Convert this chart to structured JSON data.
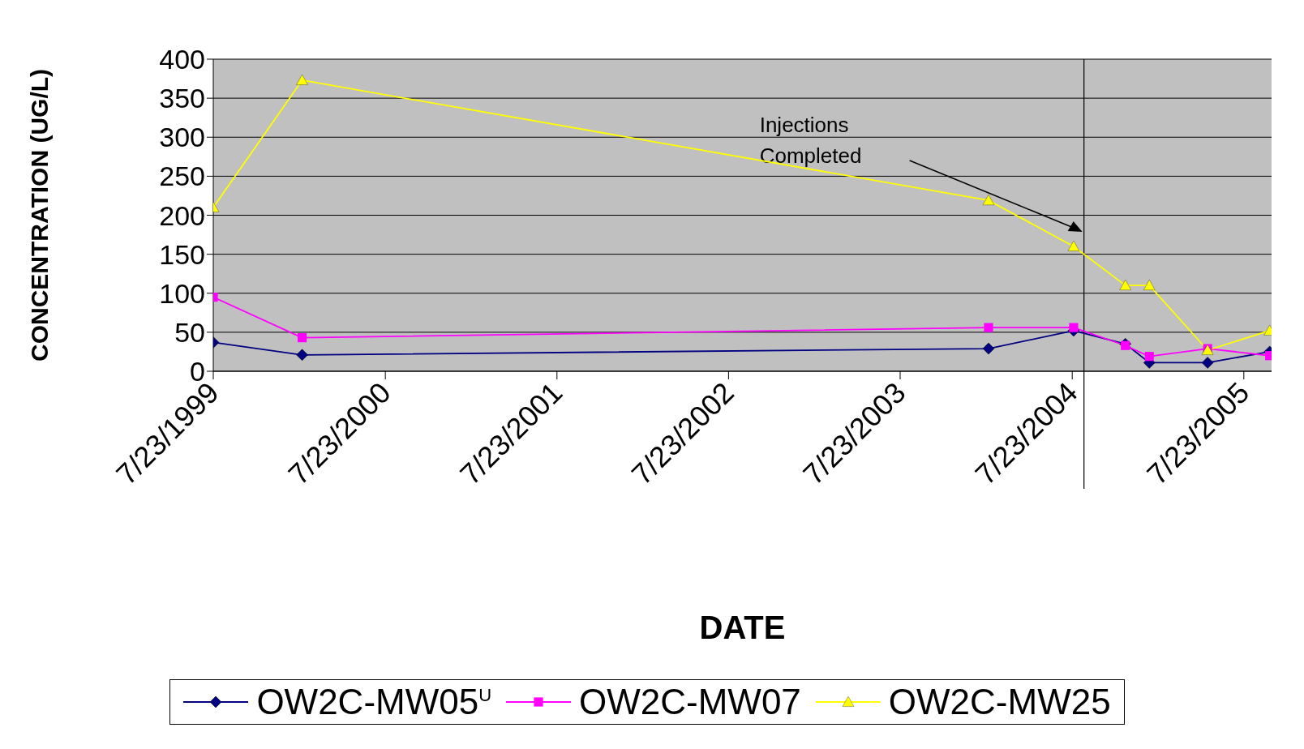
{
  "chart_data": {
    "type": "line",
    "xlabel": "DATE",
    "ylabel": "CONCENTRATION (UG/L)",
    "x": [
      "1999-07-23",
      "2000-01-28",
      "2004-01-27",
      "2004-07-26",
      "2004-11-13",
      "2005-01-03",
      "2005-05-07",
      "2005-09-16"
    ],
    "series": [
      {
        "name": "OW2C-MW05$^{U}$",
        "color": "#000080",
        "marker": "diamond",
        "values": [
          37,
          21,
          29,
          52,
          35,
          11,
          11,
          25
        ]
      },
      {
        "name": "OW2C-MW07",
        "color": "#ff00ff",
        "marker": "square",
        "values": [
          95,
          43,
          56,
          56,
          33,
          19,
          29,
          20
        ]
      },
      {
        "name": "OW2C-MW25",
        "color": "#ffff00",
        "marker": "triangle",
        "values": [
          210,
          373,
          219,
          160,
          110,
          110,
          27,
          52
        ]
      }
    ],
    "xlim": [
      "1999-07-23",
      "2005-09-20"
    ],
    "xticks": [
      {
        "value": "1999-07-23",
        "label": "7/23/1999"
      },
      {
        "value": "2000-07-23",
        "label": "7/23/2000"
      },
      {
        "value": "2001-07-23",
        "label": "7/23/2001"
      },
      {
        "value": "2002-07-23",
        "label": "7/23/2002"
      },
      {
        "value": "2003-07-23",
        "label": "7/23/2003"
      },
      {
        "value": "2004-07-23",
        "label": "7/23/2004"
      },
      {
        "value": "2005-07-23",
        "label": "7/23/2005"
      }
    ],
    "ylim": [
      0,
      400
    ],
    "yticks": [
      0,
      50,
      100,
      150,
      200,
      250,
      300,
      350,
      400
    ],
    "ref_lines": [
      {
        "axis": "x",
        "value": "2004-08-17",
        "color": "#000000"
      }
    ],
    "annotations": [
      "Injections Completed"
    ],
    "grid": "y",
    "legend": "bottom",
    "line_style": "solid"
  }
}
